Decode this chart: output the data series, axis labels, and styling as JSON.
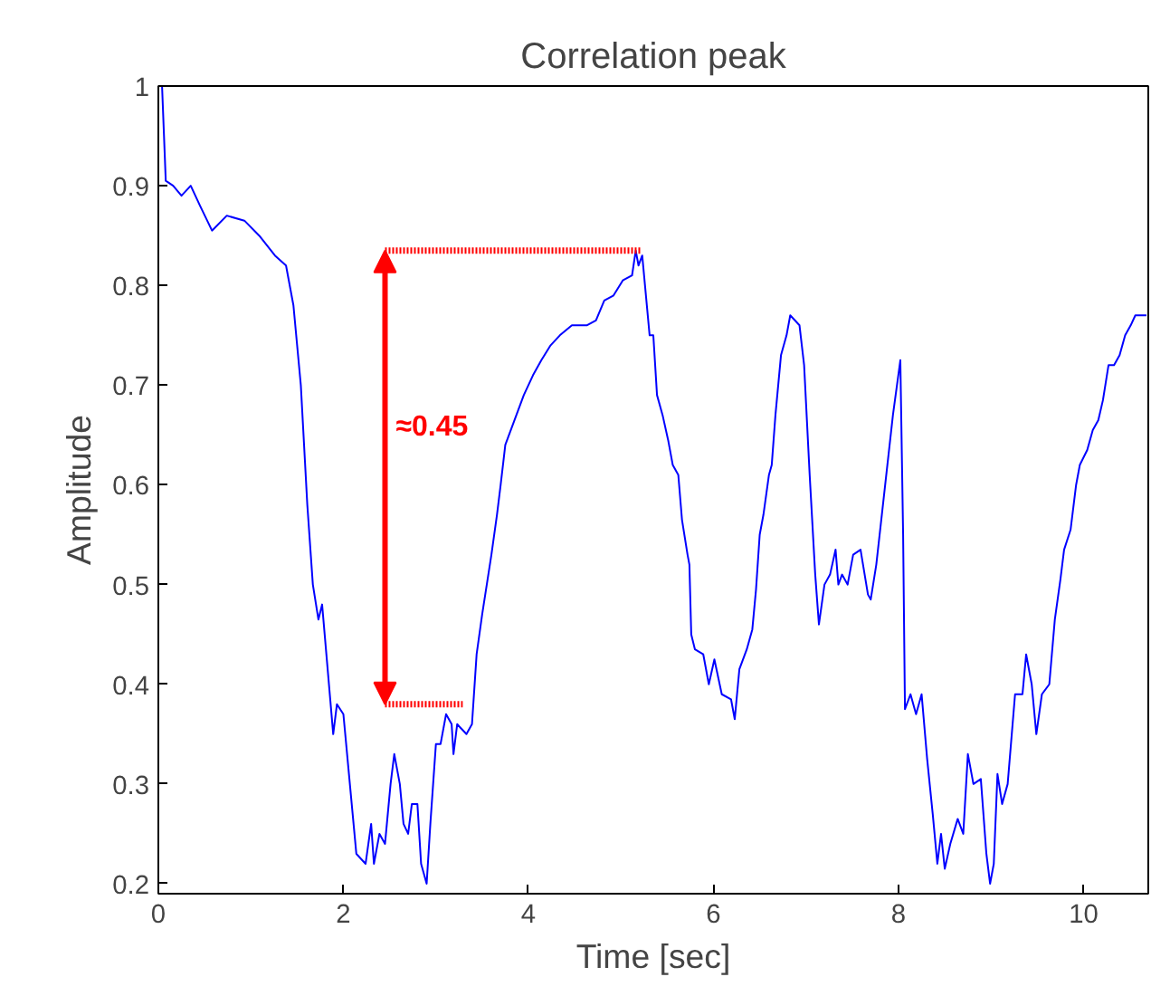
{
  "chart_data": {
    "type": "line",
    "title": "Correlation peak",
    "xlabel": "Time [sec]",
    "ylabel": "Amplitude",
    "xlim": [
      0,
      10.7
    ],
    "ylim": [
      0.19,
      1
    ],
    "xticks": [
      0,
      2,
      4,
      6,
      8,
      10
    ],
    "yticks": [
      0.2,
      0.3,
      0.4,
      0.5,
      0.6,
      0.7,
      0.8,
      0.9,
      1
    ],
    "grid": false,
    "series": [
      {
        "color": "#0000ff",
        "line_style": "solid",
        "x": [
          0.04,
          0.08,
          0.16,
          0.25,
          0.35,
          0.45,
          0.58,
          0.74,
          0.93,
          1.09,
          1.26,
          1.38,
          1.46,
          1.54,
          1.61,
          1.67,
          1.73,
          1.77,
          1.89,
          1.93,
          2.0,
          2.1,
          2.14,
          2.24,
          2.3,
          2.33,
          2.39,
          2.45,
          2.51,
          2.55,
          2.61,
          2.65,
          2.7,
          2.74,
          2.8,
          2.84,
          2.9,
          2.94,
          3.0,
          3.05,
          3.11,
          3.17,
          3.19,
          3.23,
          3.33,
          3.39,
          3.44,
          3.5,
          3.6,
          3.66,
          3.7,
          3.75,
          3.85,
          3.95,
          4.05,
          4.14,
          4.24,
          4.34,
          4.47,
          4.63,
          4.73,
          4.82,
          4.92,
          5.02,
          5.12,
          5.16,
          5.19,
          5.23,
          5.31,
          5.35,
          5.39,
          5.45,
          5.51,
          5.56,
          5.62,
          5.66,
          5.72,
          5.74,
          5.76,
          5.8,
          5.89,
          5.95,
          6.01,
          6.09,
          6.19,
          6.23,
          6.28,
          6.36,
          6.42,
          6.46,
          6.5,
          6.54,
          6.6,
          6.63,
          6.67,
          6.73,
          6.79,
          6.83,
          6.93,
          6.98,
          7.04,
          7.1,
          7.14,
          7.2,
          7.26,
          7.32,
          7.35,
          7.39,
          7.45,
          7.51,
          7.59,
          7.67,
          7.7,
          7.76,
          7.82,
          7.88,
          7.94,
          8.02,
          8.05,
          8.07,
          8.13,
          8.19,
          8.25,
          8.31,
          8.37,
          8.42,
          8.46,
          8.5,
          8.56,
          8.64,
          8.7,
          8.75,
          8.81,
          8.89,
          8.95,
          8.99,
          9.03,
          9.07,
          9.12,
          9.18,
          9.26,
          9.34,
          9.38,
          9.44,
          9.49,
          9.55,
          9.63,
          9.69,
          9.75,
          9.79,
          9.86,
          9.92,
          9.96,
          10.04,
          10.1,
          10.16,
          10.21,
          10.27,
          10.33,
          10.39,
          10.45,
          10.51,
          10.56,
          10.68
        ],
        "values": [
          1.0,
          0.905,
          0.9,
          0.89,
          0.9,
          0.88,
          0.855,
          0.87,
          0.865,
          0.85,
          0.83,
          0.82,
          0.78,
          0.7,
          0.58,
          0.5,
          0.465,
          0.48,
          0.35,
          0.38,
          0.37,
          0.27,
          0.23,
          0.22,
          0.26,
          0.22,
          0.25,
          0.24,
          0.3,
          0.33,
          0.3,
          0.26,
          0.25,
          0.28,
          0.28,
          0.22,
          0.2,
          0.26,
          0.34,
          0.34,
          0.37,
          0.36,
          0.33,
          0.36,
          0.35,
          0.36,
          0.43,
          0.47,
          0.53,
          0.57,
          0.6,
          0.64,
          0.665,
          0.69,
          0.71,
          0.725,
          0.74,
          0.75,
          0.76,
          0.76,
          0.765,
          0.785,
          0.79,
          0.805,
          0.81,
          0.835,
          0.82,
          0.83,
          0.75,
          0.75,
          0.69,
          0.67,
          0.645,
          0.62,
          0.61,
          0.565,
          0.53,
          0.52,
          0.45,
          0.435,
          0.43,
          0.4,
          0.425,
          0.39,
          0.385,
          0.365,
          0.415,
          0.435,
          0.455,
          0.495,
          0.55,
          0.57,
          0.61,
          0.62,
          0.67,
          0.73,
          0.75,
          0.77,
          0.76,
          0.72,
          0.61,
          0.51,
          0.46,
          0.5,
          0.51,
          0.535,
          0.5,
          0.51,
          0.5,
          0.53,
          0.535,
          0.49,
          0.485,
          0.52,
          0.57,
          0.62,
          0.67,
          0.725,
          0.55,
          0.375,
          0.39,
          0.37,
          0.39,
          0.325,
          0.27,
          0.22,
          0.25,
          0.215,
          0.24,
          0.265,
          0.25,
          0.33,
          0.3,
          0.305,
          0.23,
          0.2,
          0.22,
          0.31,
          0.28,
          0.3,
          0.39,
          0.39,
          0.43,
          0.4,
          0.35,
          0.39,
          0.4,
          0.465,
          0.505,
          0.535,
          0.555,
          0.6,
          0.62,
          0.635,
          0.655,
          0.665,
          0.685,
          0.72,
          0.72,
          0.73,
          0.75,
          0.76,
          0.77,
          0.77
        ]
      },
      {
        "color": "#ff0000",
        "line_style": "dotted",
        "x": [
          2.45,
          5.21
        ],
        "values": [
          0.835,
          0.835
        ]
      },
      {
        "color": "#ff0000",
        "line_style": "dotted",
        "x": [
          2.45,
          3.29
        ],
        "values": [
          0.38,
          0.38
        ]
      }
    ],
    "annotations": [
      "≈0.45"
    ]
  }
}
